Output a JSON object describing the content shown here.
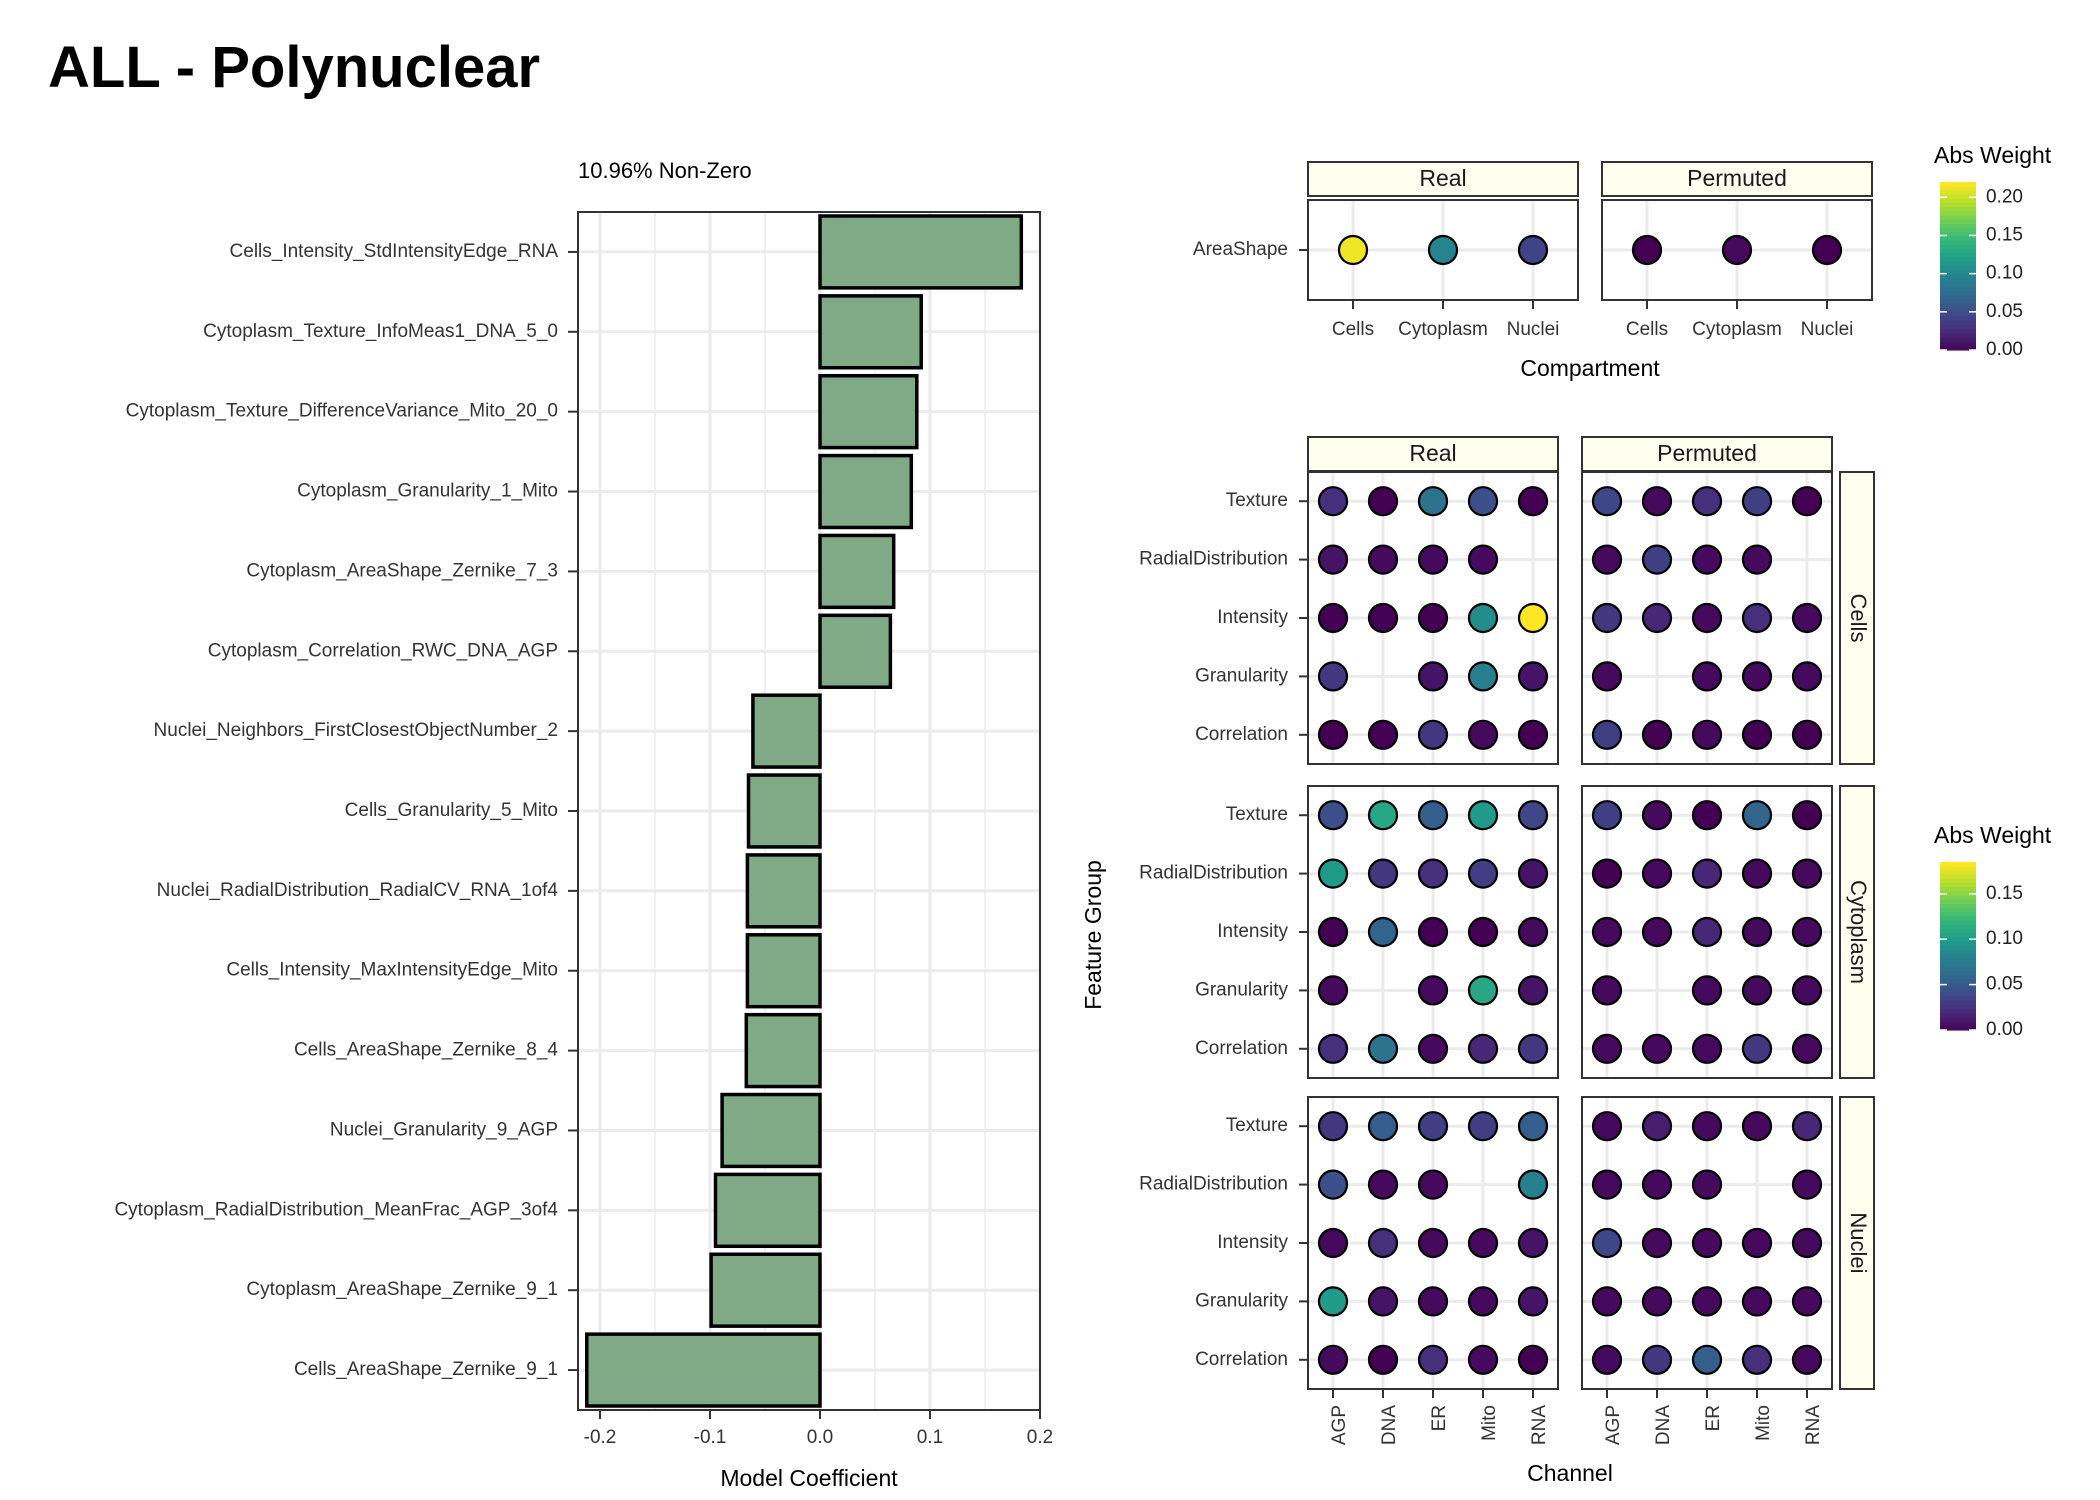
{
  "page_title": "ALL - Polynuclear",
  "chart_data": [
    {
      "type": "bar",
      "orientation": "horizontal",
      "subtitle": "10.96% Non-Zero",
      "xlabel": "Model Coefficient",
      "ylabel": "",
      "xlim": [
        -0.22,
        0.2
      ],
      "x_ticks": [
        -0.2,
        -0.1,
        0.0,
        0.1,
        0.2
      ],
      "x_tick_labels": [
        "-0.2",
        "-0.1",
        "0.0",
        "0.1",
        "0.2"
      ],
      "grid": true,
      "bar_color": "#7faa85",
      "categories": [
        "Cells_Intensity_StdIntensityEdge_RNA",
        "Cytoplasm_Texture_InfoMeas1_DNA_5_0",
        "Cytoplasm_Texture_DifferenceVariance_Mito_20_0",
        "Cytoplasm_Granularity_1_Mito",
        "Cytoplasm_AreaShape_Zernike_7_3",
        "Cytoplasm_Correlation_RWC_DNA_AGP",
        "Nuclei_Neighbors_FirstClosestObjectNumber_2",
        "Cells_Granularity_5_Mito",
        "Nuclei_RadialDistribution_RadialCV_RNA_1of4",
        "Cells_Intensity_MaxIntensityEdge_Mito",
        "Cells_AreaShape_Zernike_8_4",
        "Nuclei_Granularity_9_AGP",
        "Cytoplasm_RadialDistribution_MeanFrac_AGP_3of4",
        "Cytoplasm_AreaShape_Zernike_9_1",
        "Cells_AreaShape_Zernike_9_1"
      ],
      "values": [
        0.183,
        0.092,
        0.088,
        0.083,
        0.067,
        0.064,
        -0.061,
        -0.065,
        -0.066,
        -0.066,
        -0.067,
        -0.089,
        -0.095,
        -0.099,
        -0.212
      ]
    },
    {
      "type": "heatmap",
      "variant": "dot-plot",
      "panel": "AreaShape",
      "facets": [
        "Real",
        "Permuted"
      ],
      "categories_x": [
        "Cells",
        "Cytoplasm",
        "Nuclei"
      ],
      "categories_y": [
        "AreaShape"
      ],
      "xlabel": "Compartment",
      "legend_title": "Abs Weight",
      "legend_ticks": [
        "0.20",
        "0.15",
        "0.10",
        "0.05",
        "0.00"
      ],
      "color_range": [
        0,
        0.22
      ],
      "values": {
        "Real": [
          [
            0.215,
            0.1,
            0.045
          ]
        ],
        "Permuted": [
          [
            0.0,
            0.005,
            0.0
          ]
        ]
      }
    },
    {
      "type": "heatmap",
      "variant": "dot-plot",
      "panel": "Feature groups by channel",
      "facets_x": [
        "Real",
        "Permuted"
      ],
      "facets_y": [
        "Cells",
        "Cytoplasm",
        "Nuclei"
      ],
      "categories_x": [
        "AGP",
        "DNA",
        "ER",
        "Mito",
        "RNA"
      ],
      "categories_y": [
        "Texture",
        "RadialDistribution",
        "Intensity",
        "Granularity",
        "Correlation"
      ],
      "xlabel": "Channel",
      "ylabel": "Feature Group",
      "legend_title": "Abs Weight",
      "legend_ticks": [
        "0.15",
        "0.10",
        "0.05",
        "0.00"
      ],
      "color_range": [
        0,
        0.185
      ],
      "values": {
        "Cells": {
          "Real": [
            [
              0.025,
              0.0,
              0.07,
              0.045,
              0.0
            ],
            [
              0.01,
              0.005,
              0.005,
              0.005,
              null
            ],
            [
              0.0,
              0.0,
              0.0,
              0.09,
              0.185
            ],
            [
              0.03,
              null,
              0.01,
              0.08,
              0.01
            ],
            [
              0.0,
              0.0,
              0.03,
              0.005,
              0.0
            ]
          ],
          "Permuted": [
            [
              0.04,
              0.005,
              0.025,
              0.035,
              0.0
            ],
            [
              0.005,
              0.035,
              0.005,
              0.005,
              null
            ],
            [
              0.03,
              0.02,
              0.005,
              0.025,
              0.005
            ],
            [
              0.005,
              null,
              0.005,
              0.005,
              0.005
            ],
            [
              0.035,
              0.0,
              0.005,
              0.0,
              0.0
            ]
          ]
        },
        "Cytoplasm": {
          "Real": [
            [
              0.045,
              0.11,
              0.055,
              0.1,
              0.04
            ],
            [
              0.1,
              0.03,
              0.025,
              0.035,
              0.01
            ],
            [
              0.0,
              0.06,
              0.0,
              0.0,
              0.005
            ],
            [
              0.005,
              null,
              0.005,
              0.11,
              0.01
            ],
            [
              0.025,
              0.07,
              0.005,
              0.02,
              0.03
            ]
          ],
          "Permuted": [
            [
              0.035,
              0.005,
              0.0,
              0.06,
              0.0
            ],
            [
              0.0,
              0.005,
              0.02,
              0.005,
              0.005
            ],
            [
              0.005,
              0.005,
              0.02,
              0.005,
              0.005
            ],
            [
              0.005,
              null,
              0.005,
              0.005,
              0.005
            ],
            [
              0.005,
              0.005,
              0.005,
              0.03,
              0.005
            ]
          ]
        },
        "Nuclei": {
          "Real": [
            [
              0.03,
              0.055,
              0.035,
              0.035,
              0.055
            ],
            [
              0.045,
              0.005,
              0.005,
              null,
              0.08
            ],
            [
              0.005,
              0.025,
              0.005,
              0.005,
              0.01
            ],
            [
              0.1,
              0.01,
              0.005,
              0.005,
              0.01
            ],
            [
              0.005,
              0.0,
              0.025,
              0.005,
              0.0
            ]
          ],
          "Permuted": [
            [
              0.005,
              0.015,
              0.005,
              0.005,
              0.02
            ],
            [
              0.005,
              0.005,
              0.005,
              null,
              0.005
            ],
            [
              0.04,
              0.005,
              0.005,
              0.005,
              0.005
            ],
            [
              0.005,
              0.005,
              0.005,
              0.005,
              0.005
            ],
            [
              0.005,
              0.03,
              0.055,
              0.025,
              0.005
            ]
          ]
        }
      }
    }
  ]
}
